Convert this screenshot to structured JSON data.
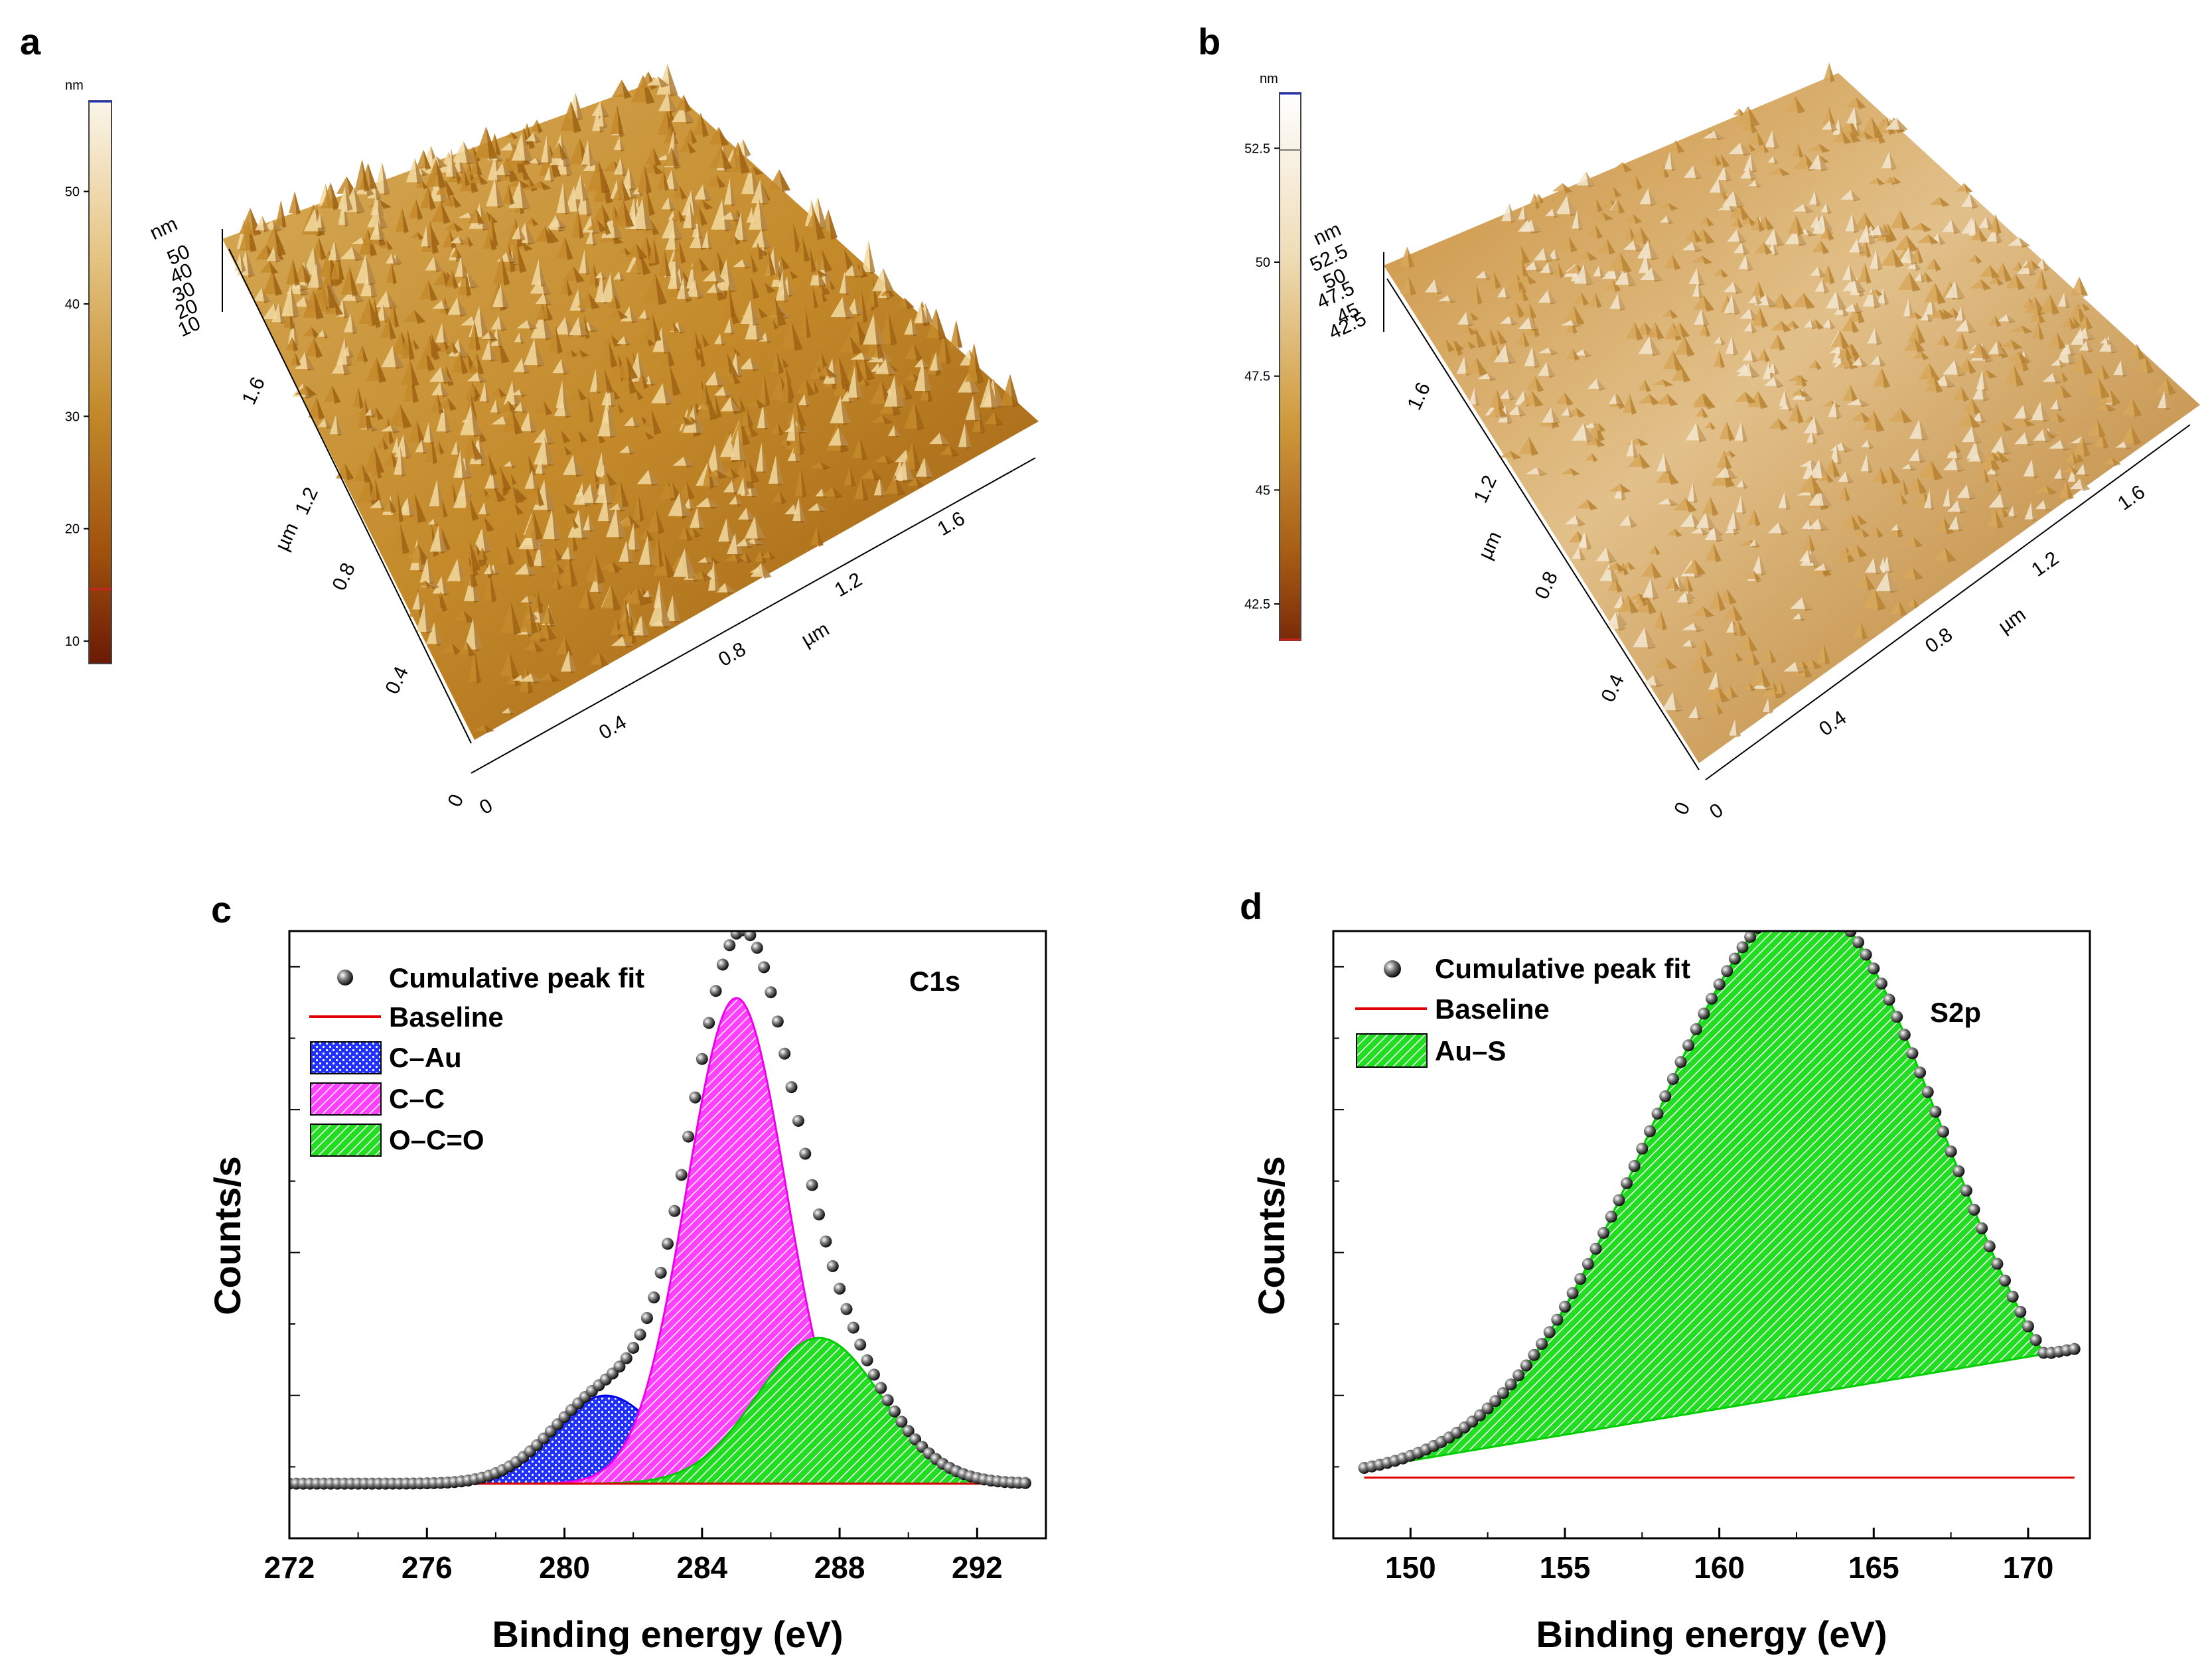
{
  "panels": {
    "a": {
      "label": "a",
      "colorbar": {
        "unit": "nm",
        "ticks": [
          "50",
          "40",
          "30",
          "20",
          "10"
        ],
        "tick_values": [
          50,
          40,
          30,
          20,
          10
        ],
        "range": [
          8,
          58
        ]
      },
      "z_axis": {
        "unit": "nm",
        "ticks": [
          "50",
          "40",
          "30",
          "20",
          "10"
        ]
      },
      "y_axis": {
        "unit": "µm",
        "ticks": [
          "1.6",
          "1.2",
          "0.8",
          "0.4",
          "0"
        ]
      },
      "x_axis": {
        "unit": "µm",
        "ticks": [
          "0",
          "0.4",
          "0.8",
          "1.2",
          "1.6"
        ]
      },
      "surface_colors": {
        "dark": "#8a4e08",
        "mid": "#c48a2a",
        "light": "#f2d9a0"
      }
    },
    "b": {
      "label": "b",
      "colorbar": {
        "unit": "nm",
        "ticks": [
          "52.5",
          "50",
          "47.5",
          "45",
          "42.5"
        ],
        "tick_values": [
          52.5,
          50,
          47.5,
          45,
          42.5
        ],
        "range": [
          41.7,
          53.7
        ]
      },
      "z_axis": {
        "unit": "nm",
        "ticks": [
          "52.5",
          "50",
          "47.5",
          "45",
          "42.5"
        ]
      },
      "y_axis": {
        "unit": "µm",
        "ticks": [
          "1.6",
          "1.2",
          "0.8",
          "0.4",
          "0"
        ]
      },
      "x_axis": {
        "unit": "µm",
        "ticks": [
          "0",
          "0.4",
          "0.8",
          "1.2",
          "1.6"
        ]
      },
      "surface_colors": {
        "dark": "#a8701f",
        "mid": "#d7a75a",
        "light": "#f3e6cf"
      }
    }
  },
  "chart_data": [
    {
      "panel": "c",
      "type": "area",
      "label": "c",
      "annotation": "C1s",
      "xlabel": "Binding energy (eV)",
      "ylabel": "Counts/s",
      "xlim": [
        272,
        294
      ],
      "xticks": [
        272,
        276,
        280,
        284,
        288,
        292
      ],
      "ylim": [
        0,
        1
      ],
      "baseline": {
        "name": "Baseline",
        "color": "#e00000",
        "y": 0.09
      },
      "cumulative": {
        "name": "Cumulative peak fit",
        "x_range": [
          272,
          293.5
        ],
        "step": 0.2
      },
      "series": [
        {
          "name": "C–Au",
          "color": "#0000ff",
          "center": 281.2,
          "height": 0.145,
          "sigma": 1.55
        },
        {
          "name": "C–C",
          "color": "#ff00ff",
          "center": 285.0,
          "height": 0.8,
          "sigma": 1.45
        },
        {
          "name": "O–C=O",
          "color": "#00dd00",
          "center": 287.4,
          "height": 0.24,
          "sigma": 1.8
        }
      ],
      "legend": [
        "Cumulative peak fit",
        "Baseline",
        "C–Au",
        "C–C",
        "O–C=O"
      ],
      "legend_position": "top-left"
    },
    {
      "panel": "d",
      "type": "area",
      "label": "d",
      "annotation": "S2p",
      "xlabel": "Binding energy (eV)",
      "ylabel": "Counts/s",
      "xlim": [
        147.5,
        172
      ],
      "xticks": [
        150,
        155,
        160,
        165,
        170
      ],
      "ylim": [
        0,
        1
      ],
      "baseline": {
        "name": "Baseline",
        "color": "#e00000",
        "y": 0.1
      },
      "cumulative": {
        "name": "Cumulative peak fit",
        "x_range": [
          148.5,
          171.5
        ],
        "step": 0.25
      },
      "series": [
        {
          "name": "Au–S",
          "color": "#00dd00",
          "center": 162.8,
          "height": 0.95,
          "sigma_left": 5.0,
          "sigma_right": 4.4,
          "background_from": [
            148.5,
            0.115
          ],
          "background_to": [
            171.3,
            0.31
          ]
        }
      ],
      "legend": [
        "Cumulative peak fit",
        "Baseline",
        "Au–S"
      ],
      "legend_position": "top-left"
    }
  ]
}
